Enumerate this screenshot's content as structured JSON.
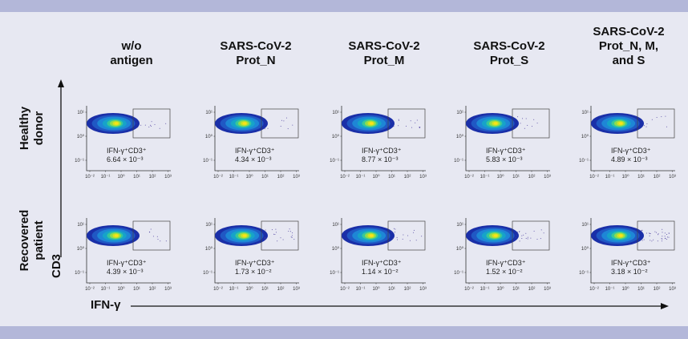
{
  "chart_data": {
    "type": "scatter",
    "subtype": "flow-cytometry-density-plots",
    "columns": [
      "w/o\nantigen",
      "SARS-CoV-2\nProt_N",
      "SARS-CoV-2\nProt_M",
      "SARS-CoV-2\nProt_S",
      "SARS-CoV-2\nProt_N, M,\nand S"
    ],
    "rows": [
      "Healthy\ndonor",
      "Recovered\npatient"
    ],
    "xlabel": "IFN-γ",
    "ylabel": "CD3",
    "x_ticks": [
      "10⁻²",
      "10⁻¹",
      "10⁰",
      "10¹",
      "10²",
      "10³"
    ],
    "y_ticks": [
      "10¹",
      "10⁰",
      "10⁻¹"
    ],
    "gate_label": "IFN-γ⁺CD3⁺",
    "values": [
      [
        "6.64 × 10⁻³",
        "4.34 × 10⁻³",
        "8.77 × 10⁻³",
        "5.83 × 10⁻³",
        "4.89 × 10⁻³"
      ],
      [
        "4.39 × 10⁻³",
        "1.73 × 10⁻²",
        "1.14 × 10⁻²",
        "1.52 × 10⁻²",
        "3.18 × 10⁻²"
      ]
    ],
    "numeric_values": [
      [
        0.00664,
        0.00434,
        0.00877,
        0.00583,
        0.00489
      ],
      [
        0.00439,
        0.0173,
        0.0114,
        0.0152,
        0.0318
      ]
    ],
    "colors": {
      "density_low": "#1a2fa8",
      "density_mid": "#16a3c9",
      "density_high": "#ffe11a",
      "outlier": "#4b3d9e",
      "background": "#e7e8f2",
      "frame": "#b3b7d9"
    }
  }
}
